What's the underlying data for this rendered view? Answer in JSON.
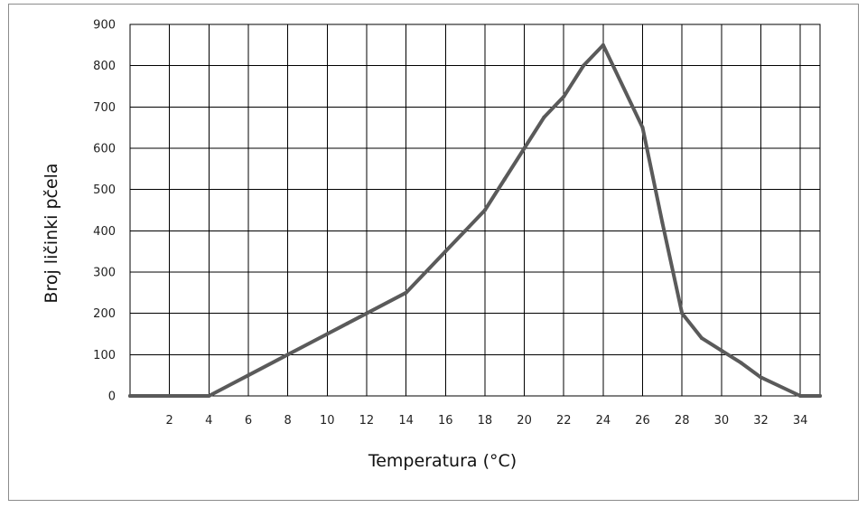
{
  "chart_data": {
    "type": "line",
    "title": "",
    "xlabel": "Temperatura (°C)",
    "ylabel": "Broj ličinki pčela",
    "xlim": [
      0,
      35
    ],
    "ylim": [
      0,
      900
    ],
    "x_ticks": [
      2,
      4,
      6,
      8,
      10,
      12,
      14,
      16,
      18,
      20,
      22,
      24,
      26,
      28,
      30,
      32,
      34
    ],
    "y_ticks": [
      0,
      100,
      200,
      300,
      400,
      500,
      600,
      700,
      800,
      900
    ],
    "grid": true,
    "legend": "none",
    "series": [
      {
        "color": "#5a5a5a",
        "points": [
          [
            0,
            0
          ],
          [
            2,
            0
          ],
          [
            4,
            0
          ],
          [
            6,
            50
          ],
          [
            8,
            100
          ],
          [
            10,
            150
          ],
          [
            11,
            175
          ],
          [
            12,
            200
          ],
          [
            14,
            250
          ],
          [
            16,
            350
          ],
          [
            17,
            400
          ],
          [
            18,
            450
          ],
          [
            19,
            525
          ],
          [
            20,
            600
          ],
          [
            21,
            675
          ],
          [
            22,
            725
          ],
          [
            23,
            800
          ],
          [
            24,
            850
          ],
          [
            26,
            650
          ],
          [
            27,
            420
          ],
          [
            28,
            200
          ],
          [
            29,
            140
          ],
          [
            30,
            110
          ],
          [
            31,
            80
          ],
          [
            32,
            45
          ],
          [
            34,
            0
          ],
          [
            35,
            0
          ]
        ]
      }
    ]
  }
}
